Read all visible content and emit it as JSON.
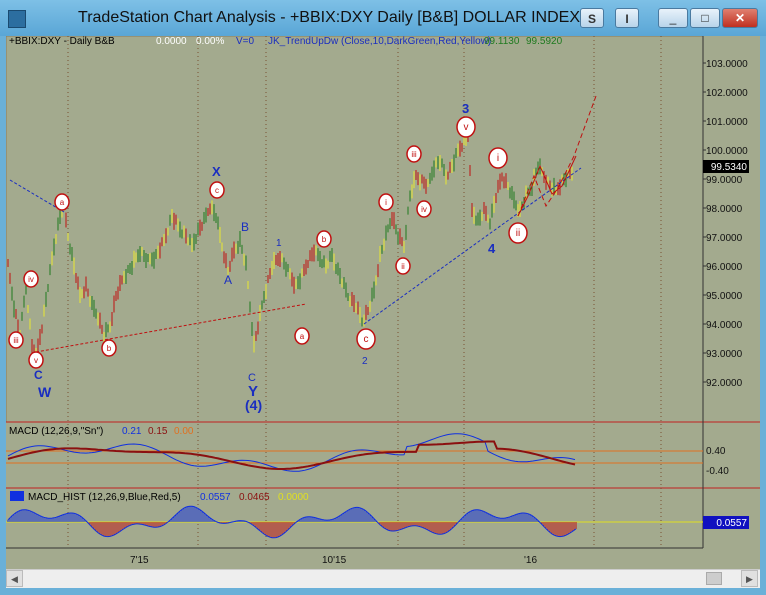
{
  "window": {
    "title": "TradeStation Chart Analysis - +BBIX:DXY Daily [B&B] DOLLAR INDEX",
    "btn_s": "S",
    "btn_i": "I",
    "min": "_",
    "max": "□",
    "close": "✕"
  },
  "header": {
    "symbol": "+BBIX:DXY - Daily  B&B",
    "chg": "0.0000",
    "pct": "0.00%",
    "v": "V=0",
    "indicator": "JK_TrendUpDw (Close,10,DarkGreen,Red,Yellow)",
    "val1": "99.1130",
    "val2": "99.5920"
  },
  "price_axis": [
    "103.0000",
    "102.0000",
    "101.0000",
    "100.0000",
    "99.0000",
    "98.0000",
    "97.0000",
    "96.0000",
    "95.0000",
    "94.0000",
    "93.0000",
    "92.0000"
  ],
  "last_price": "99.5340",
  "macd": {
    "label": "MACD (12,26,9,\"Sn\")",
    "v1": "0.21",
    "v2": "0.15",
    "v3": "0.00",
    "axis": [
      "0.40",
      "-0.40"
    ]
  },
  "macd_hist": {
    "label": "MACD_HIST (12,26,9,Blue,Red,5)",
    "v1": "0.0557",
    "v2": "0.0465",
    "v3": "0.0000",
    "last": "0.0557"
  },
  "time_axis": [
    "7'15",
    "10'15",
    "'16"
  ],
  "wave_labels": {
    "W": "W",
    "X": "X",
    "Y": "Y",
    "four_big": "(4)",
    "three": "3",
    "four": "4",
    "C1": "C",
    "C2": "C",
    "A": "A",
    "B": "B",
    "one": "1",
    "two": "2"
  },
  "circle_labels": {
    "iii1": "iii",
    "iv1": "iv",
    "v1": "v",
    "a1": "a",
    "b1": "b",
    "c1": "c",
    "a2": "a",
    "b2": "b",
    "c2": "c",
    "i1": "i",
    "ii1": "ii",
    "iii2": "iii",
    "iv2": "iv",
    "v2": "v",
    "i2": "i",
    "ii2": "ii"
  },
  "colors": {
    "chart_bg": "#a3aa8e",
    "bar_green": "#1f7a1f",
    "bar_red": "#c01010",
    "bar_yellow": "#e8e830",
    "wave_blue": "#1a2ec0",
    "macd_blue": "#1030e0",
    "macd_red": "#8b1010"
  }
}
